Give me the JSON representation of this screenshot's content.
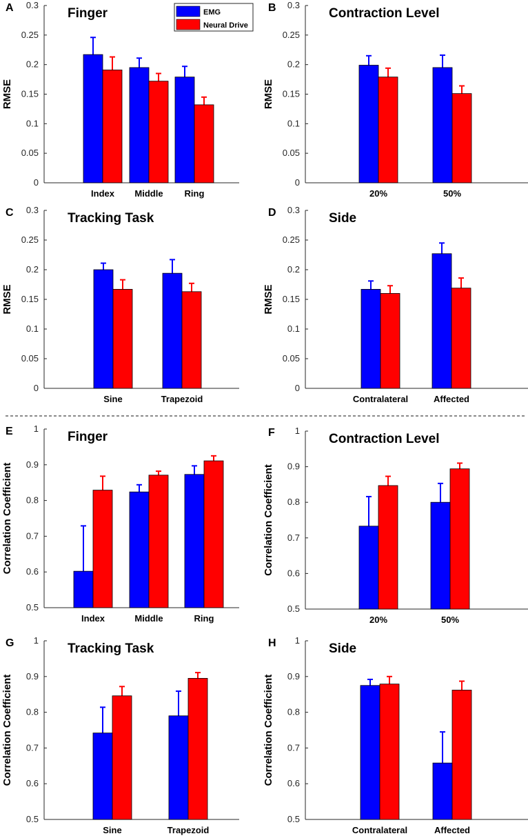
{
  "colors": {
    "emg": "#0000ff",
    "neural": "#ff0000",
    "axis": "#262626"
  },
  "legend": [
    {
      "label": "EMG",
      "color": "#0000ff"
    },
    {
      "label": "Neural Drive",
      "color": "#ff0000"
    }
  ],
  "chart_data": [
    {
      "letter": "A",
      "type": "bar",
      "title": "Finger",
      "ylabel": "RMSE",
      "ylim": [
        0,
        0.3
      ],
      "yticks": [
        "0",
        "0.05",
        "0.1",
        "0.15",
        "0.2",
        "0.25",
        "0.3"
      ],
      "categories": [
        "Index",
        "Middle",
        "Ring"
      ],
      "legend": true,
      "series": [
        {
          "name": "EMG",
          "values": [
            0.217,
            0.195,
            0.179
          ],
          "errors": [
            0.029,
            0.016,
            0.018
          ]
        },
        {
          "name": "Neural Drive",
          "values": [
            0.191,
            0.172,
            0.132
          ],
          "errors": [
            0.022,
            0.013,
            0.013
          ]
        }
      ]
    },
    {
      "letter": "B",
      "type": "bar",
      "title": "Contraction Level",
      "ylabel": "RMSE",
      "ylim": [
        0,
        0.3
      ],
      "yticks": [
        "0",
        "0.05",
        "0.1",
        "0.15",
        "0.2",
        "0.25",
        "0.3"
      ],
      "categories": [
        "20%",
        "50%"
      ],
      "legend": false,
      "series": [
        {
          "name": "EMG",
          "values": [
            0.199,
            0.195
          ],
          "errors": [
            0.016,
            0.021
          ]
        },
        {
          "name": "Neural Drive",
          "values": [
            0.179,
            0.151
          ],
          "errors": [
            0.015,
            0.013
          ]
        }
      ]
    },
    {
      "letter": "C",
      "type": "bar",
      "title": "Tracking Task",
      "ylabel": "RMSE",
      "ylim": [
        0,
        0.3
      ],
      "yticks": [
        "0",
        "0.05",
        "0.1",
        "0.15",
        "0.2",
        "0.25",
        "0.3"
      ],
      "categories": [
        "Sine",
        "Trapezoid"
      ],
      "legend": false,
      "series": [
        {
          "name": "EMG",
          "values": [
            0.2,
            0.194
          ],
          "errors": [
            0.011,
            0.023
          ]
        },
        {
          "name": "Neural Drive",
          "values": [
            0.167,
            0.163
          ],
          "errors": [
            0.016,
            0.014
          ]
        }
      ]
    },
    {
      "letter": "D",
      "type": "bar",
      "title": "Side",
      "ylabel": "RMSE",
      "ylim": [
        0,
        0.3
      ],
      "yticks": [
        "0",
        "0.05",
        "0.1",
        "0.15",
        "0.2",
        "0.25",
        "0.3"
      ],
      "categories": [
        "Contralateral",
        "Affected"
      ],
      "legend": false,
      "series": [
        {
          "name": "EMG",
          "values": [
            0.167,
            0.227
          ],
          "errors": [
            0.014,
            0.018
          ]
        },
        {
          "name": "Neural Drive",
          "values": [
            0.16,
            0.169
          ],
          "errors": [
            0.013,
            0.017
          ]
        }
      ]
    },
    {
      "letter": "E",
      "type": "bar",
      "title": "Finger",
      "ylabel": "Correlation Coefficient",
      "ylim": [
        0.5,
        1
      ],
      "yticks": [
        "0.5",
        "0.6",
        "0.7",
        "0.8",
        "0.9",
        "1"
      ],
      "categories": [
        "Index",
        "Middle",
        "Ring"
      ],
      "legend": false,
      "series": [
        {
          "name": "EMG",
          "values": [
            0.602,
            0.824,
            0.873
          ],
          "errors": [
            0.127,
            0.02,
            0.024
          ]
        },
        {
          "name": "Neural Drive",
          "values": [
            0.829,
            0.871,
            0.911
          ],
          "errors": [
            0.039,
            0.011,
            0.014
          ]
        }
      ]
    },
    {
      "letter": "F",
      "type": "bar",
      "title": "Contraction Level",
      "ylabel": "Correlation Coefficient",
      "ylim": [
        0.5,
        1
      ],
      "yticks": [
        "0.5",
        "0.6",
        "0.7",
        "0.8",
        "0.9",
        "1"
      ],
      "categories": [
        "20%",
        "50%"
      ],
      "legend": false,
      "series": [
        {
          "name": "EMG",
          "values": [
            0.733,
            0.8
          ],
          "errors": [
            0.083,
            0.053
          ]
        },
        {
          "name": "Neural Drive",
          "values": [
            0.847,
            0.894
          ],
          "errors": [
            0.026,
            0.016
          ]
        }
      ]
    },
    {
      "letter": "G",
      "type": "bar",
      "title": "Tracking Task",
      "ylabel": "Correlation Coefficient",
      "ylim": [
        0.5,
        1
      ],
      "yticks": [
        "0.5",
        "0.6",
        "0.7",
        "0.8",
        "0.9",
        "1"
      ],
      "categories": [
        "Sine",
        "Trapezoid"
      ],
      "legend": false,
      "series": [
        {
          "name": "EMG",
          "values": [
            0.742,
            0.79
          ],
          "errors": [
            0.072,
            0.069
          ]
        },
        {
          "name": "Neural Drive",
          "values": [
            0.846,
            0.895
          ],
          "errors": [
            0.026,
            0.016
          ]
        }
      ]
    },
    {
      "letter": "H",
      "type": "bar",
      "title": "Side",
      "ylabel": "Correlation Coefficient",
      "ylim": [
        0.5,
        1
      ],
      "yticks": [
        "0.5",
        "0.6",
        "0.7",
        "0.8",
        "0.9",
        "1"
      ],
      "categories": [
        "Contralateral",
        "Affected"
      ],
      "legend": false,
      "series": [
        {
          "name": "EMG",
          "values": [
            0.875,
            0.658
          ],
          "errors": [
            0.017,
            0.087
          ]
        },
        {
          "name": "Neural Drive",
          "values": [
            0.879,
            0.862
          ],
          "errors": [
            0.021,
            0.025
          ]
        }
      ]
    }
  ]
}
